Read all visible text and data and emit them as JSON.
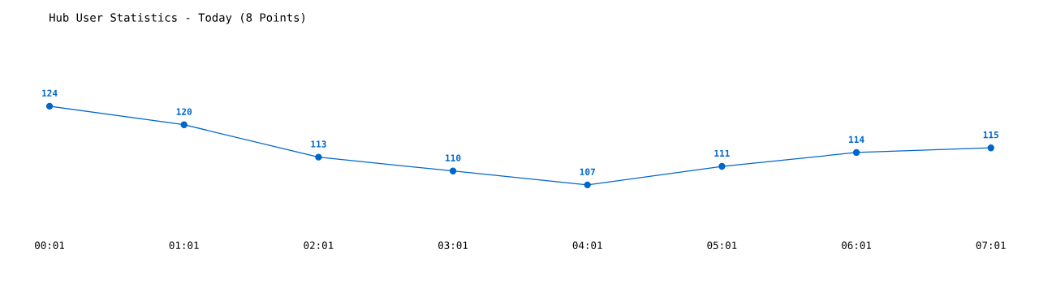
{
  "chart_data": {
    "type": "line",
    "title": "Hub User Statistics - Today (8 Points)",
    "categories": [
      "00:01",
      "01:01",
      "02:01",
      "03:01",
      "04:01",
      "05:01",
      "06:01",
      "07:01"
    ],
    "series": [
      {
        "color": "#0066cc",
        "values": [
          124,
          120,
          113,
          110,
          107,
          111,
          114,
          115
        ]
      }
    ],
    "tick_labels": "x",
    "data_labels": true,
    "marker": "circle",
    "line_style": "solid"
  }
}
